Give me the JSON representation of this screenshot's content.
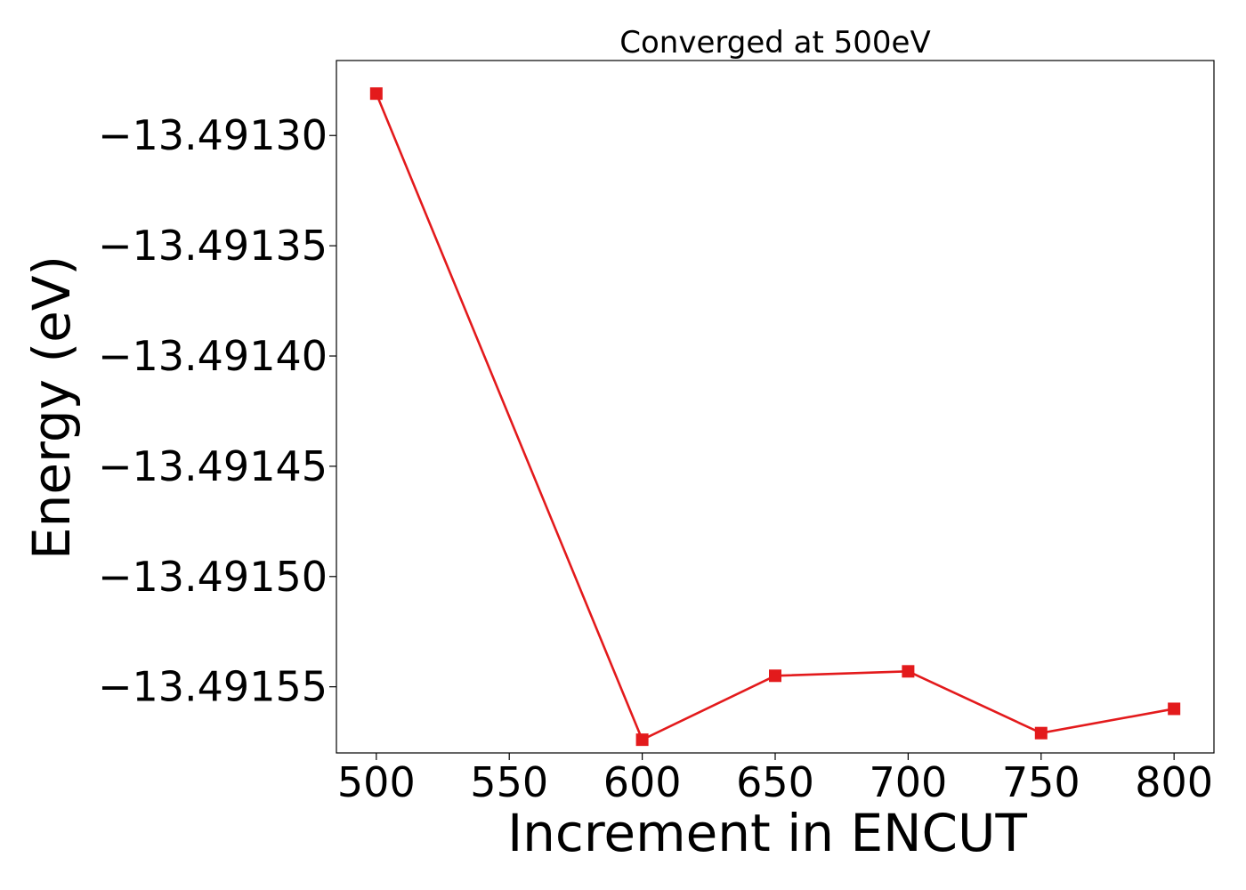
{
  "chart_data": {
    "type": "line",
    "title": "Converged at 500eV",
    "xlabel": "Increment in ENCUT",
    "ylabel": "Energy (eV)",
    "x": [
      500,
      600,
      650,
      700,
      750,
      800
    ],
    "series": [
      {
        "values": [
          -13.491281,
          -13.491574,
          -13.491545,
          -13.491543,
          -13.491571,
          -13.49156
        ],
        "color": "#e31a1c",
        "marker": "square"
      }
    ],
    "xlim": [
      485,
      815
    ],
    "ylim": [
      -13.49158,
      -13.491266
    ],
    "xticks": [
      500,
      550,
      600,
      650,
      700,
      750,
      800
    ],
    "xtick_labels": [
      "500",
      "550",
      "600",
      "650",
      "700",
      "750",
      "800"
    ],
    "yticks": [
      -13.4913,
      -13.49135,
      -13.4914,
      -13.49145,
      -13.4915,
      -13.49155
    ],
    "ytick_labels": [
      "−13.49130",
      "−13.49135",
      "−13.49140",
      "−13.49145",
      "−13.49150",
      "−13.49155"
    ],
    "grid": false,
    "legend": "none"
  }
}
